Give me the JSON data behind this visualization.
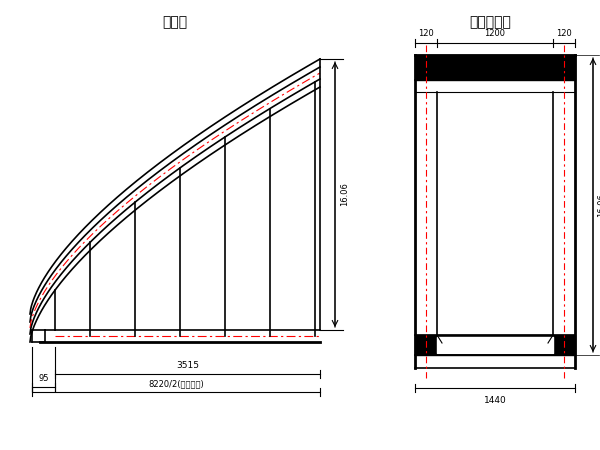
{
  "title_left": "半立面",
  "title_right": "跨中横断面",
  "bg_color": "#ffffff",
  "black": "#000000",
  "red": "#ff0000",
  "lw": 1.2,
  "lw_thick": 2.0,
  "lw_thin": 0.8,
  "dim_left_label": "95",
  "dim_span_label": "3515",
  "dim_total_label": "8220/2(桥斥全心)",
  "dim_height_label": "16.06",
  "cs_dim_top_left": "120",
  "cs_dim_top_mid": "1200",
  "cs_dim_top_right": "120",
  "cs_dim_bottom": "1440"
}
